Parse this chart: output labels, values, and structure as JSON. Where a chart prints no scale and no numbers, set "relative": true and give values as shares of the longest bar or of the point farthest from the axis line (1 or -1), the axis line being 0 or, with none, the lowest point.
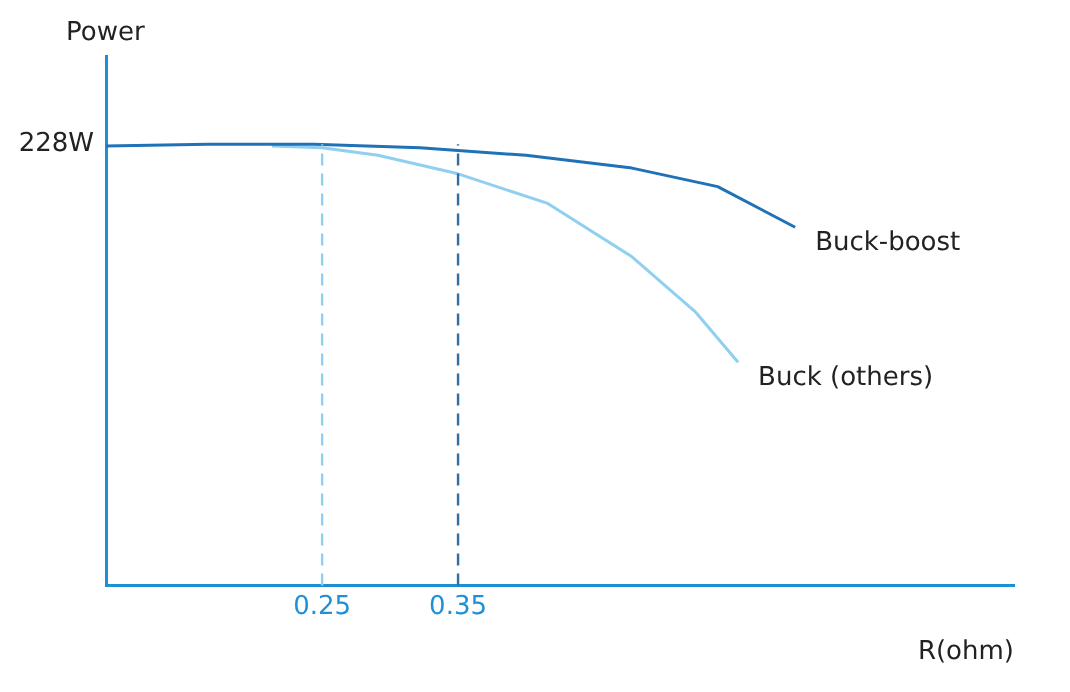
{
  "chart_data": {
    "type": "line",
    "xlabel": "R(ohm)",
    "ylabel": "Power",
    "relative": true,
    "xlim": [
      0.091,
      0.759
    ],
    "xticks": [
      0.25,
      0.35
    ],
    "grid": false,
    "legend": false,
    "marker": "none",
    "line_style": "solid",
    "series": [
      {
        "name": "Buck-boost",
        "color": "#1f72b8",
        "x": [
          0.091,
          0.166,
          0.244,
          0.322,
          0.4,
          0.478,
          0.541,
          0.598
        ],
        "values": [
          0.996,
          1.0,
          1.0,
          0.992,
          0.975,
          0.946,
          0.904,
          0.812
        ]
      },
      {
        "name": "Buck (others)",
        "color": "#8fd0f0",
        "x": [
          0.213,
          0.25,
          0.291,
          0.35,
          0.416,
          0.478,
          0.525,
          0.556
        ],
        "values": [
          0.996,
          0.992,
          0.975,
          0.933,
          0.866,
          0.745,
          0.619,
          0.506
        ]
      }
    ],
    "ref_lines": [
      {
        "axis": "x",
        "value": 0.25,
        "color": "#8fd0f0",
        "line_style": "dashed"
      },
      {
        "axis": "x",
        "value": 0.35,
        "color": "#2f6e9e",
        "line_style": "dashed"
      }
    ],
    "annotations": [
      "228W"
    ]
  }
}
